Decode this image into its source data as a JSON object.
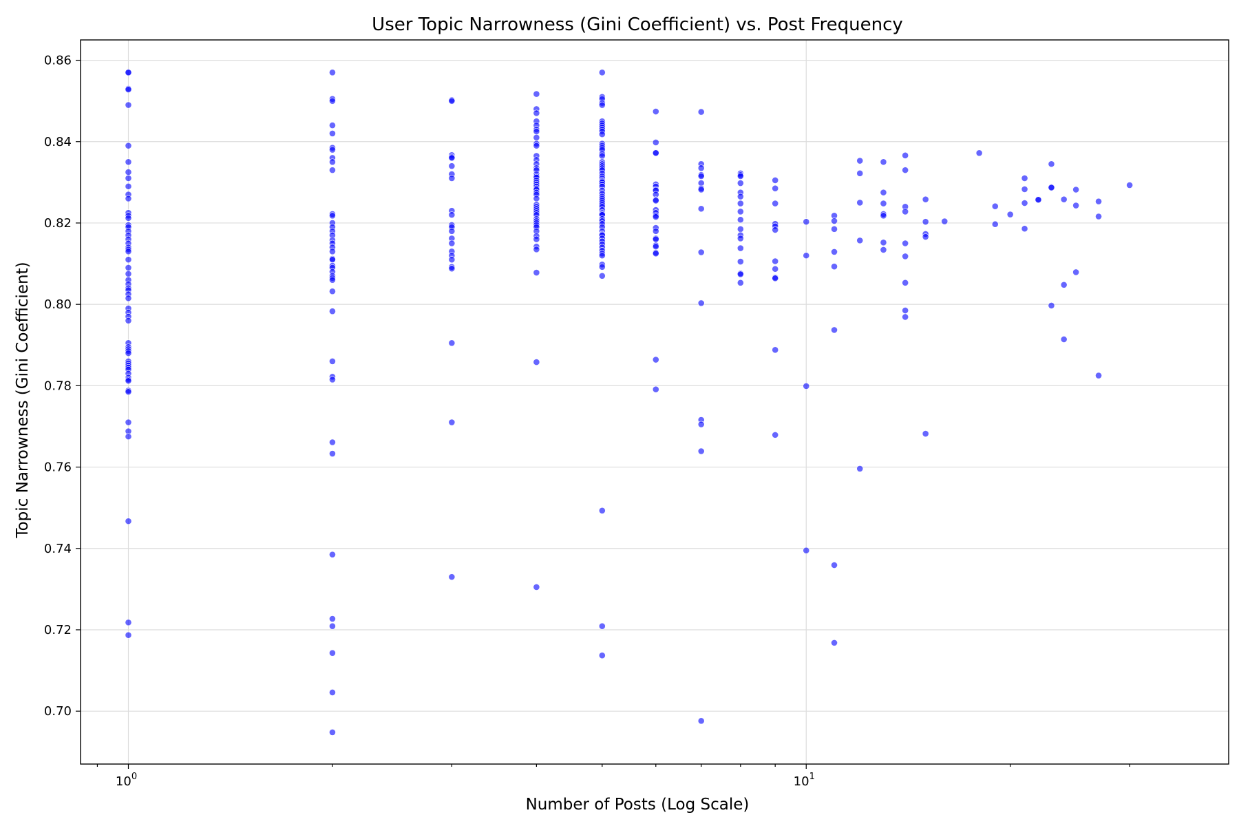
{
  "chart_data": {
    "type": "scatter",
    "title": "User Topic Narrowness (Gini Coefficient) vs. Post Frequency",
    "xlabel": "Number of Posts (Log Scale)",
    "ylabel": "Topic Narrowness (Gini Coefficient)",
    "xscale": "log",
    "xlim": [
      0.85,
      42
    ],
    "ylim": [
      0.687,
      0.865
    ],
    "x_major_ticks": [
      {
        "value": 1,
        "base": "10",
        "exp": "0"
      },
      {
        "value": 10,
        "base": "10",
        "exp": "1"
      }
    ],
    "x_minor_ticks": [
      2,
      3,
      4,
      5,
      6,
      7,
      8,
      9,
      20,
      30
    ],
    "y_ticks": [
      0.7,
      0.72,
      0.74,
      0.76,
      0.78,
      0.8,
      0.82,
      0.84,
      0.86
    ],
    "y_tick_labels": [
      "0.70",
      "0.72",
      "0.74",
      "0.76",
      "0.78",
      "0.80",
      "0.82",
      "0.84",
      "0.86"
    ],
    "grid": true,
    "marker_color": "#0000ff",
    "marker_alpha": 0.6,
    "points": [
      [
        1,
        0.857
      ],
      [
        1,
        0.857
      ],
      [
        1,
        0.853
      ],
      [
        1,
        0.8528
      ],
      [
        1,
        0.849
      ],
      [
        1,
        0.839
      ],
      [
        1,
        0.835
      ],
      [
        1,
        0.8325
      ],
      [
        1,
        0.831
      ],
      [
        1,
        0.829
      ],
      [
        1,
        0.827
      ],
      [
        1,
        0.826
      ],
      [
        1,
        0.8225
      ],
      [
        1,
        0.8218
      ],
      [
        1,
        0.8212
      ],
      [
        1,
        0.8195
      ],
      [
        1,
        0.819
      ],
      [
        1,
        0.818
      ],
      [
        1,
        0.817
      ],
      [
        1,
        0.816
      ],
      [
        1,
        0.815
      ],
      [
        1,
        0.814
      ],
      [
        1,
        0.8135
      ],
      [
        1,
        0.813
      ],
      [
        1,
        0.811
      ],
      [
        1,
        0.809
      ],
      [
        1,
        0.8075
      ],
      [
        1,
        0.806
      ],
      [
        1,
        0.805
      ],
      [
        1,
        0.804
      ],
      [
        1,
        0.8035
      ],
      [
        1,
        0.8025
      ],
      [
        1,
        0.8015
      ],
      [
        1,
        0.799
      ],
      [
        1,
        0.798
      ],
      [
        1,
        0.797
      ],
      [
        1,
        0.796
      ],
      [
        1,
        0.7905
      ],
      [
        1,
        0.7895
      ],
      [
        1,
        0.789
      ],
      [
        1,
        0.7885
      ],
      [
        1,
        0.788
      ],
      [
        1,
        0.786
      ],
      [
        1,
        0.7855
      ],
      [
        1,
        0.785
      ],
      [
        1,
        0.7845
      ],
      [
        1,
        0.784
      ],
      [
        1,
        0.783
      ],
      [
        1,
        0.782
      ],
      [
        1,
        0.7815
      ],
      [
        1,
        0.7812
      ],
      [
        1,
        0.7788
      ],
      [
        1,
        0.7785
      ],
      [
        1,
        0.771
      ],
      [
        1,
        0.7688
      ],
      [
        1,
        0.7675
      ],
      [
        1,
        0.7467
      ],
      [
        1,
        0.7218
      ],
      [
        1,
        0.7187
      ],
      [
        2,
        0.857
      ],
      [
        2,
        0.8505
      ],
      [
        2,
        0.85
      ],
      [
        2,
        0.844
      ],
      [
        2,
        0.842
      ],
      [
        2,
        0.8385
      ],
      [
        2,
        0.838
      ],
      [
        2,
        0.836
      ],
      [
        2,
        0.835
      ],
      [
        2,
        0.833
      ],
      [
        2,
        0.8222
      ],
      [
        2,
        0.8218
      ],
      [
        2,
        0.82
      ],
      [
        2,
        0.819
      ],
      [
        2,
        0.818
      ],
      [
        2,
        0.817
      ],
      [
        2,
        0.8158
      ],
      [
        2,
        0.815
      ],
      [
        2,
        0.814
      ],
      [
        2,
        0.813
      ],
      [
        2,
        0.8112
      ],
      [
        2,
        0.811
      ],
      [
        2,
        0.8095
      ],
      [
        2,
        0.809
      ],
      [
        2,
        0.808
      ],
      [
        2,
        0.807
      ],
      [
        2,
        0.8065
      ],
      [
        2,
        0.806
      ],
      [
        2,
        0.8032
      ],
      [
        2,
        0.7983
      ],
      [
        2,
        0.786
      ],
      [
        2,
        0.7822
      ],
      [
        2,
        0.7815
      ],
      [
        2,
        0.7661
      ],
      [
        2,
        0.7633
      ],
      [
        2,
        0.7385
      ],
      [
        2,
        0.7227
      ],
      [
        2,
        0.7209
      ],
      [
        2,
        0.7143
      ],
      [
        2,
        0.7046
      ],
      [
        2,
        0.6948
      ],
      [
        3,
        0.8502
      ],
      [
        3,
        0.85
      ],
      [
        3,
        0.8367
      ],
      [
        3,
        0.8362
      ],
      [
        3,
        0.836
      ],
      [
        3,
        0.834
      ],
      [
        3,
        0.832
      ],
      [
        3,
        0.831
      ],
      [
        3,
        0.823
      ],
      [
        3,
        0.822
      ],
      [
        3,
        0.8195
      ],
      [
        3,
        0.819
      ],
      [
        3,
        0.818
      ],
      [
        3,
        0.8162
      ],
      [
        3,
        0.815
      ],
      [
        3,
        0.813
      ],
      [
        3,
        0.812
      ],
      [
        3,
        0.811
      ],
      [
        3,
        0.8092
      ],
      [
        3,
        0.8088
      ],
      [
        3,
        0.7905
      ],
      [
        3,
        0.771
      ],
      [
        3,
        0.733
      ],
      [
        4,
        0.8517
      ],
      [
        4,
        0.848
      ],
      [
        4,
        0.847
      ],
      [
        4,
        0.845
      ],
      [
        4,
        0.844
      ],
      [
        4,
        0.843
      ],
      [
        4,
        0.8425
      ],
      [
        4,
        0.841
      ],
      [
        4,
        0.8395
      ],
      [
        4,
        0.839
      ],
      [
        4,
        0.8365
      ],
      [
        4,
        0.8355
      ],
      [
        4,
        0.8345
      ],
      [
        4,
        0.8335
      ],
      [
        4,
        0.833
      ],
      [
        4,
        0.832
      ],
      [
        4,
        0.8315
      ],
      [
        4,
        0.8312
      ],
      [
        4,
        0.8305
      ],
      [
        4,
        0.83
      ],
      [
        4,
        0.8295
      ],
      [
        4,
        0.829
      ],
      [
        4,
        0.8285
      ],
      [
        4,
        0.8282
      ],
      [
        4,
        0.8275
      ],
      [
        4,
        0.827
      ],
      [
        4,
        0.826
      ],
      [
        4,
        0.8245
      ],
      [
        4,
        0.824
      ],
      [
        4,
        0.8235
      ],
      [
        4,
        0.823
      ],
      [
        4,
        0.8225
      ],
      [
        4,
        0.822
      ],
      [
        4,
        0.821
      ],
      [
        4,
        0.8205
      ],
      [
        4,
        0.82
      ],
      [
        4,
        0.8195
      ],
      [
        4,
        0.819
      ],
      [
        4,
        0.818
      ],
      [
        4,
        0.8168
      ],
      [
        4,
        0.816
      ],
      [
        4,
        0.8142
      ],
      [
        4,
        0.8135
      ],
      [
        4,
        0.8078
      ],
      [
        4,
        0.7858
      ],
      [
        4,
        0.7305
      ],
      [
        5,
        0.857
      ],
      [
        5,
        0.851
      ],
      [
        5,
        0.8505
      ],
      [
        5,
        0.8495
      ],
      [
        5,
        0.849
      ],
      [
        5,
        0.845
      ],
      [
        5,
        0.8445
      ],
      [
        5,
        0.844
      ],
      [
        5,
        0.8435
      ],
      [
        5,
        0.843
      ],
      [
        5,
        0.8425
      ],
      [
        5,
        0.8418
      ],
      [
        5,
        0.8395
      ],
      [
        5,
        0.839
      ],
      [
        5,
        0.8385
      ],
      [
        5,
        0.838
      ],
      [
        5,
        0.837
      ],
      [
        5,
        0.8365
      ],
      [
        5,
        0.835
      ],
      [
        5,
        0.8345
      ],
      [
        5,
        0.834
      ],
      [
        5,
        0.8335
      ],
      [
        5,
        0.833
      ],
      [
        5,
        0.8322
      ],
      [
        5,
        0.8315
      ],
      [
        5,
        0.831
      ],
      [
        5,
        0.8305
      ],
      [
        5,
        0.8302
      ],
      [
        5,
        0.83
      ],
      [
        5,
        0.8295
      ],
      [
        5,
        0.829
      ],
      [
        5,
        0.828
      ],
      [
        5,
        0.8272
      ],
      [
        5,
        0.8265
      ],
      [
        5,
        0.826
      ],
      [
        5,
        0.8255
      ],
      [
        5,
        0.825
      ],
      [
        5,
        0.8245
      ],
      [
        5,
        0.824
      ],
      [
        5,
        0.8232
      ],
      [
        5,
        0.8225
      ],
      [
        5,
        0.8222
      ],
      [
        5,
        0.822
      ],
      [
        5,
        0.821
      ],
      [
        5,
        0.8205
      ],
      [
        5,
        0.8198
      ],
      [
        5,
        0.819
      ],
      [
        5,
        0.818
      ],
      [
        5,
        0.8172
      ],
      [
        5,
        0.817
      ],
      [
        5,
        0.8162
      ],
      [
        5,
        0.8155
      ],
      [
        5,
        0.8148
      ],
      [
        5,
        0.814
      ],
      [
        5,
        0.8132
      ],
      [
        5,
        0.8125
      ],
      [
        5,
        0.812
      ],
      [
        5,
        0.8098
      ],
      [
        5,
        0.8092
      ],
      [
        5,
        0.807
      ],
      [
        5,
        0.7493
      ],
      [
        5,
        0.7209
      ],
      [
        5,
        0.7137
      ],
      [
        6,
        0.8474
      ],
      [
        6,
        0.8398
      ],
      [
        6,
        0.8373
      ],
      [
        6,
        0.8372
      ],
      [
        6,
        0.8295
      ],
      [
        6,
        0.829
      ],
      [
        6,
        0.8282
      ],
      [
        6,
        0.828
      ],
      [
        6,
        0.827
      ],
      [
        6,
        0.8257
      ],
      [
        6,
        0.8255
      ],
      [
        6,
        0.8232
      ],
      [
        6,
        0.8225
      ],
      [
        6,
        0.8218
      ],
      [
        6,
        0.8215
      ],
      [
        6,
        0.8188
      ],
      [
        6,
        0.818
      ],
      [
        6,
        0.8162
      ],
      [
        6,
        0.816
      ],
      [
        6,
        0.8145
      ],
      [
        6,
        0.8142
      ],
      [
        6,
        0.8127
      ],
      [
        6,
        0.8125
      ],
      [
        6,
        0.7864
      ],
      [
        6,
        0.7791
      ],
      [
        7,
        0.8473
      ],
      [
        7,
        0.8345
      ],
      [
        7,
        0.8335
      ],
      [
        7,
        0.8318
      ],
      [
        7,
        0.8315
      ],
      [
        7,
        0.8298
      ],
      [
        7,
        0.8285
      ],
      [
        7,
        0.8282
      ],
      [
        7,
        0.8235
      ],
      [
        7,
        0.8128
      ],
      [
        7,
        0.8003
      ],
      [
        7,
        0.7716
      ],
      [
        7,
        0.7705
      ],
      [
        7,
        0.7639
      ],
      [
        7,
        0.6976
      ],
      [
        8,
        0.8322
      ],
      [
        8,
        0.8318
      ],
      [
        8,
        0.8315
      ],
      [
        8,
        0.8298
      ],
      [
        8,
        0.8275
      ],
      [
        8,
        0.8265
      ],
      [
        8,
        0.8248
      ],
      [
        8,
        0.8228
      ],
      [
        8,
        0.8208
      ],
      [
        8,
        0.8185
      ],
      [
        8,
        0.817
      ],
      [
        8,
        0.8162
      ],
      [
        8,
        0.8138
      ],
      [
        8,
        0.8105
      ],
      [
        8,
        0.8076
      ],
      [
        8,
        0.8074
      ],
      [
        8,
        0.8053
      ],
      [
        9,
        0.8305
      ],
      [
        9,
        0.8285
      ],
      [
        9,
        0.8248
      ],
      [
        9,
        0.8198
      ],
      [
        9,
        0.8192
      ],
      [
        9,
        0.8183
      ],
      [
        9,
        0.8106
      ],
      [
        9,
        0.8087
      ],
      [
        9,
        0.8066
      ],
      [
        9,
        0.8064
      ],
      [
        9,
        0.7888
      ],
      [
        9,
        0.7679
      ],
      [
        10,
        0.8203
      ],
      [
        10,
        0.812
      ],
      [
        10,
        0.7799
      ],
      [
        10,
        0.7395
      ],
      [
        11,
        0.8218
      ],
      [
        11,
        0.8205
      ],
      [
        11,
        0.8185
      ],
      [
        11,
        0.8129
      ],
      [
        11,
        0.8093
      ],
      [
        11,
        0.7937
      ],
      [
        11,
        0.7359
      ],
      [
        11,
        0.7168
      ],
      [
        12,
        0.8353
      ],
      [
        12,
        0.8322
      ],
      [
        12,
        0.825
      ],
      [
        12,
        0.8157
      ],
      [
        12,
        0.7596
      ],
      [
        13,
        0.835
      ],
      [
        13,
        0.8275
      ],
      [
        13,
        0.8248
      ],
      [
        13,
        0.8222
      ],
      [
        13,
        0.8218
      ],
      [
        13,
        0.8152
      ],
      [
        13,
        0.8134
      ],
      [
        14,
        0.8366
      ],
      [
        14,
        0.833
      ],
      [
        14,
        0.824
      ],
      [
        14,
        0.8228
      ],
      [
        14,
        0.815
      ],
      [
        14,
        0.8118
      ],
      [
        14,
        0.8053
      ],
      [
        14,
        0.7985
      ],
      [
        14,
        0.7969
      ],
      [
        15,
        0.8258
      ],
      [
        15,
        0.8203
      ],
      [
        15,
        0.8173
      ],
      [
        15,
        0.8166
      ],
      [
        15,
        0.7682
      ],
      [
        16,
        0.8204
      ],
      [
        18,
        0.8372
      ],
      [
        19,
        0.8241
      ],
      [
        19,
        0.8197
      ],
      [
        20,
        0.8221
      ],
      [
        21,
        0.831
      ],
      [
        21,
        0.8283
      ],
      [
        21,
        0.8249
      ],
      [
        21,
        0.8186
      ],
      [
        22,
        0.8258
      ],
      [
        22,
        0.8257
      ],
      [
        23,
        0.8345
      ],
      [
        23,
        0.8288
      ],
      [
        23,
        0.8287
      ],
      [
        23,
        0.7997
      ],
      [
        24,
        0.8258
      ],
      [
        24,
        0.8048
      ],
      [
        24,
        0.7914
      ],
      [
        25,
        0.8282
      ],
      [
        25,
        0.8243
      ],
      [
        25,
        0.8079
      ],
      [
        27,
        0.8253
      ],
      [
        27,
        0.8216
      ],
      [
        27,
        0.7825
      ],
      [
        30,
        0.8293
      ]
    ]
  }
}
